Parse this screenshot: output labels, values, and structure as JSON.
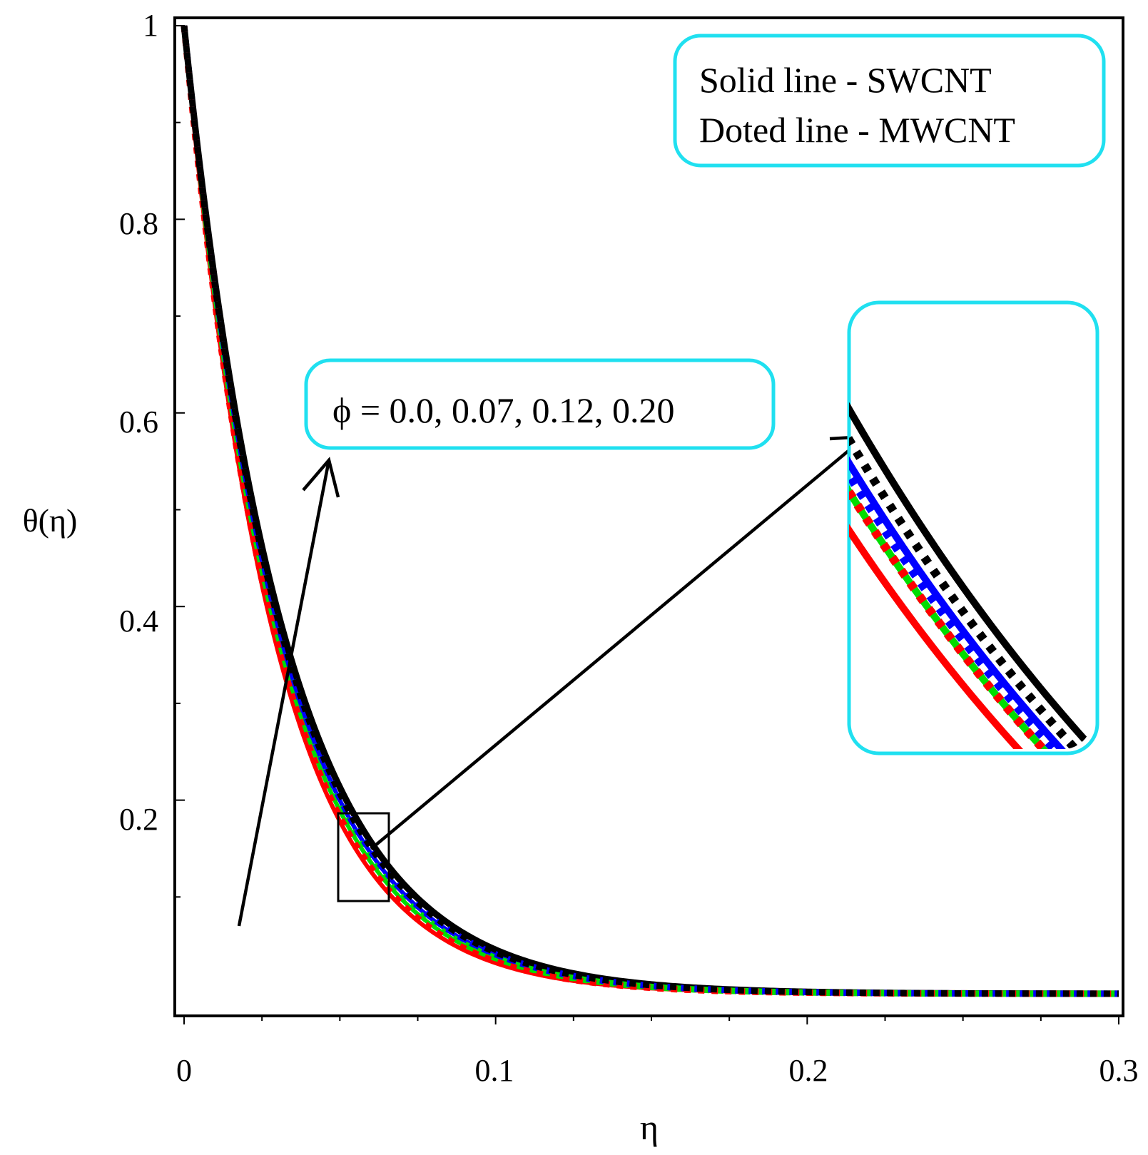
{
  "chart_data": {
    "type": "line",
    "xlabel": "η",
    "ylabel": "θ(η)",
    "xlim": [
      0,
      0.3
    ],
    "ylim": [
      0,
      1
    ],
    "x_ticks": [
      {
        "value": 0,
        "label": "0"
      },
      {
        "value": 0.1,
        "label": "0.1"
      },
      {
        "value": 0.2,
        "label": "0.2"
      },
      {
        "value": 0.3,
        "label": "0.3"
      }
    ],
    "y_ticks": [
      {
        "value": 0.2,
        "label": "0.2"
      },
      {
        "value": 0.4,
        "label": "0.4"
      },
      {
        "value": 0.6,
        "label": "0.6"
      },
      {
        "value": 0.8,
        "label": "0.8"
      },
      {
        "value": 1.0,
        "label": "1"
      }
    ],
    "legend_lines": [
      "Solid line - SWCNT",
      "Doted line - MWCNT"
    ],
    "annotation": "ϕ = 0.0, 0.07, 0.12, 0.20",
    "series": [
      {
        "name": "SWCNT ϕ=0.0",
        "style": "solid",
        "color": "#ff0000",
        "decay_rate": 34.5
      },
      {
        "name": "SWCNT ϕ=0.07",
        "style": "solid",
        "color": "#00dd00",
        "decay_rate": 33.3
      },
      {
        "name": "SWCNT ϕ=0.12",
        "style": "solid",
        "color": "#0000ff",
        "decay_rate": 32.2
      },
      {
        "name": "SWCNT ϕ=0.20",
        "style": "solid",
        "color": "#000000",
        "decay_rate": 30.9
      },
      {
        "name": "MWCNT ϕ=0.0",
        "style": "dotted",
        "color": "#ff0000",
        "decay_rate": 34.0
      },
      {
        "name": "MWCNT ϕ=0.07",
        "style": "dotted",
        "color": "#00dd00",
        "decay_rate": 33.0
      },
      {
        "name": "MWCNT ϕ=0.12",
        "style": "dotted",
        "color": "#0000ff",
        "decay_rate": 32.0
      },
      {
        "name": "MWCNT ϕ=0.20",
        "style": "dotted",
        "color": "#000000",
        "decay_rate": 31.5
      }
    ],
    "inset": {
      "x_range": [
        0.05,
        0.066
      ],
      "y_range": [
        0.12,
        0.21
      ]
    }
  },
  "colors": {
    "box_border": "#20e0f0",
    "axis": "#000000"
  }
}
